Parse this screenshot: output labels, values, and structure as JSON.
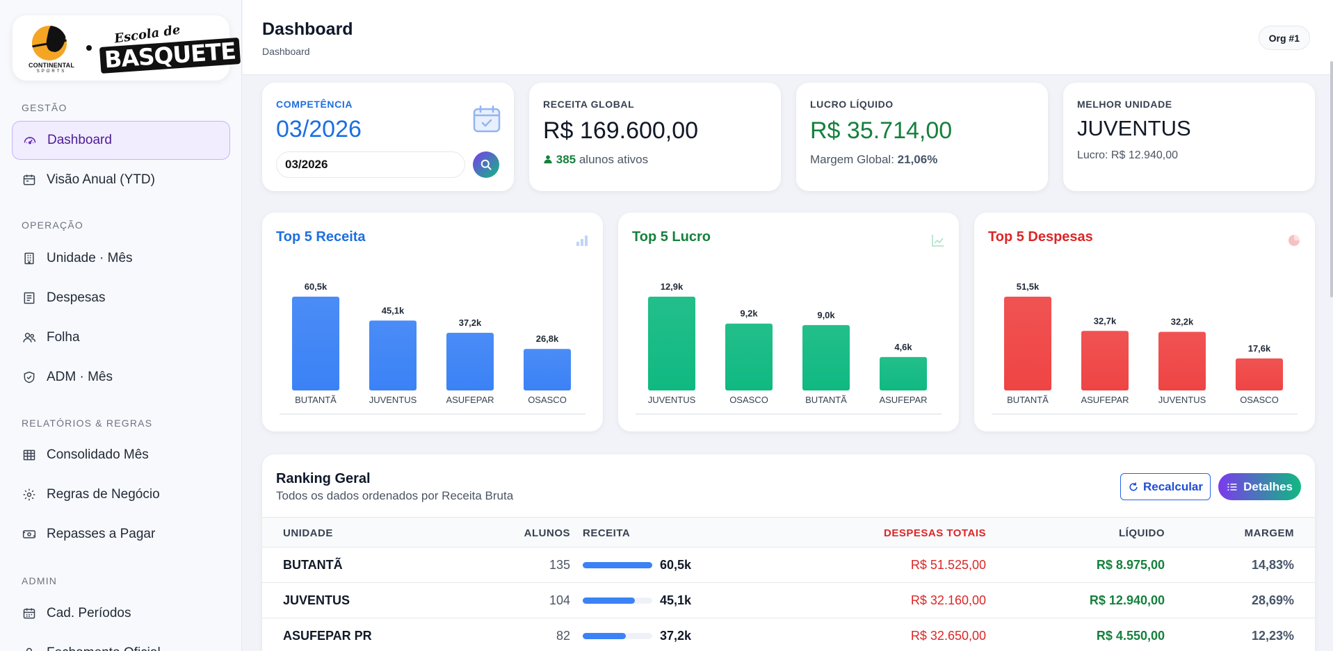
{
  "brand": {
    "logo_left_line1": "CONTINENTAL",
    "logo_left_line2": "SPORTS",
    "logo_right_script": "Escola de",
    "logo_right_big": "BASQUETE"
  },
  "sidebar": {
    "sections": [
      {
        "title": "GESTÃO",
        "items": [
          {
            "label": "Dashboard",
            "icon": "gauge-icon",
            "active": true
          },
          {
            "label": "Visão Anual (YTD)",
            "icon": "calendar-icon"
          }
        ]
      },
      {
        "title": "OPERAÇÃO",
        "items": [
          {
            "label": "Unidade · Mês",
            "icon": "building-icon"
          },
          {
            "label": "Despesas",
            "icon": "receipt-icon"
          },
          {
            "label": "Folha",
            "icon": "people-icon"
          },
          {
            "label": "ADM · Mês",
            "icon": "shield-icon"
          }
        ]
      },
      {
        "title": "RELATÓRIOS & REGRAS",
        "items": [
          {
            "label": "Consolidado Mês",
            "icon": "table-icon"
          },
          {
            "label": "Regras de Negócio",
            "icon": "gear-icon"
          },
          {
            "label": "Repasses a Pagar",
            "icon": "cash-icon"
          }
        ]
      },
      {
        "title": "ADMIN",
        "items": [
          {
            "label": "Cad. Períodos",
            "icon": "calendar-grid-icon"
          },
          {
            "label": "Fechamento Oficial",
            "icon": "lock-icon"
          }
        ]
      }
    ]
  },
  "header": {
    "title": "Dashboard",
    "breadcrumb": "Dashboard",
    "org": "Org #1"
  },
  "kpis": {
    "competencia": {
      "label": "COMPETÊNCIA",
      "value": "03/2026",
      "input_value": "03/2026"
    },
    "receita": {
      "label": "RECEITA GLOBAL",
      "value": "R$ 169.600,00",
      "alunos": "385",
      "alunos_text": "alunos ativos"
    },
    "lucro": {
      "label": "LUCRO LÍQUIDO",
      "value": "R$ 35.714,00",
      "margem_text": "Margem Global:",
      "margem": "21,06%"
    },
    "melhor": {
      "label": "MELHOR UNIDADE",
      "value": "JUVENTUS",
      "sub": "Lucro: R$ 12.940,00"
    }
  },
  "colors": {
    "blue": "#3b82f6",
    "green": "#10b981",
    "red": "#ef4444",
    "primary_text_blue": "#1d6fe0",
    "green_text": "#15803d",
    "red_text": "#dc2626"
  },
  "chart_data": [
    {
      "type": "bar",
      "title": "Top 5 Receita",
      "categories": [
        "BUTANTÃ",
        "JUVENTUS",
        "ASUFEPAR",
        "OSASCO"
      ],
      "values": [
        60.5,
        45.1,
        37.2,
        26.8
      ],
      "labels": [
        "60,5k",
        "45,1k",
        "37,2k",
        "26,8k"
      ],
      "color": "#3b82f6",
      "grid": false
    },
    {
      "type": "bar",
      "title": "Top 5 Lucro",
      "categories": [
        "JUVENTUS",
        "OSASCO",
        "BUTANTÃ",
        "ASUFEPAR"
      ],
      "values": [
        12.9,
        9.2,
        9.0,
        4.6
      ],
      "labels": [
        "12,9k",
        "9,2k",
        "9,0k",
        "4,6k"
      ],
      "color": "#10b981",
      "grid": false
    },
    {
      "type": "bar",
      "title": "Top 5 Despesas",
      "categories": [
        "BUTANTÃ",
        "ASUFEPAR",
        "JUVENTUS",
        "OSASCO"
      ],
      "values": [
        51.5,
        32.7,
        32.2,
        17.6
      ],
      "labels": [
        "51,5k",
        "32,7k",
        "32,2k",
        "17,6k"
      ],
      "color": "#ef4444",
      "grid": false
    }
  ],
  "ranking": {
    "title": "Ranking Geral",
    "subtitle": "Todos os dados ordenados por Receita Bruta",
    "recalc_label": "Recalcular",
    "details_label": "Detalhes",
    "columns": {
      "unidade": "UNIDADE",
      "alunos": "ALUNOS",
      "receita": "RECEITA",
      "despesas": "DESPESAS TOTAIS",
      "liquido": "LÍQUIDO",
      "margem": "MARGEM"
    },
    "rows": [
      {
        "unidade": "BUTANTÃ",
        "alunos": "135",
        "receita": "60,5k",
        "receita_fraction": 1.0,
        "despesas": "R$ 51.525,00",
        "liquido": "R$ 8.975,00",
        "margem": "14,83%"
      },
      {
        "unidade": "JUVENTUS",
        "alunos": "104",
        "receita": "45,1k",
        "receita_fraction": 0.745,
        "despesas": "R$ 32.160,00",
        "liquido": "R$ 12.940,00",
        "margem": "28,69%"
      },
      {
        "unidade": "ASUFEPAR PR",
        "alunos": "82",
        "receita": "37,2k",
        "receita_fraction": 0.615,
        "despesas": "R$ 32.650,00",
        "liquido": "R$ 4.550,00",
        "margem": "12,23%"
      }
    ]
  }
}
